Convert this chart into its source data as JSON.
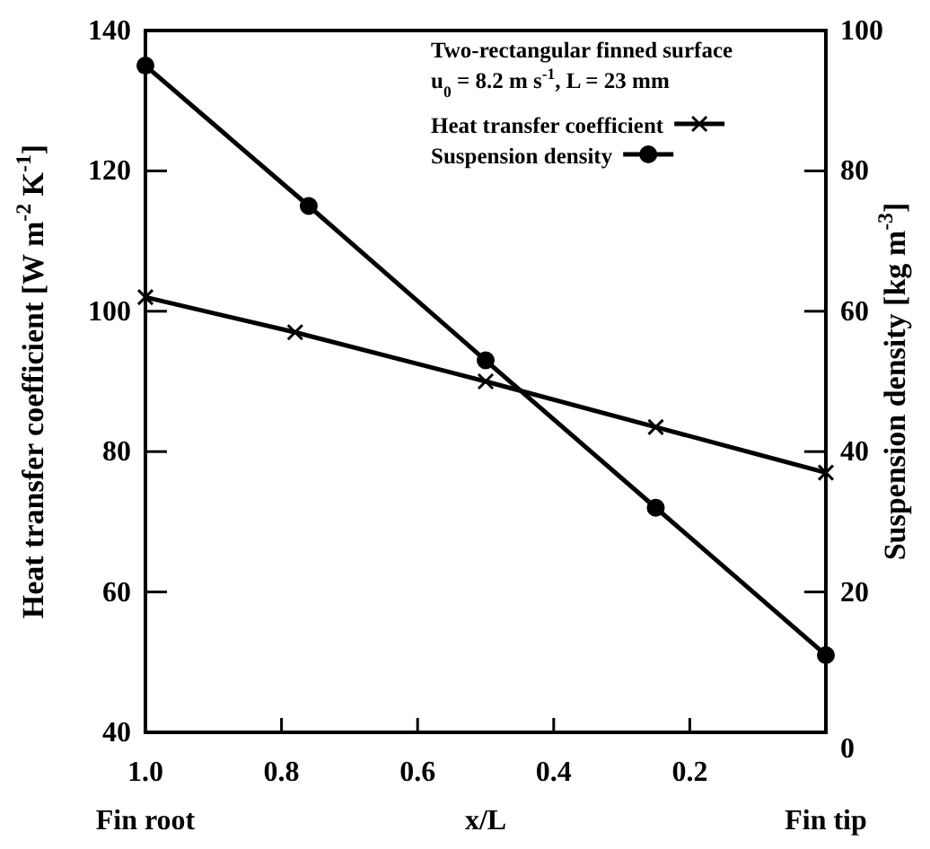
{
  "chart_data": {
    "type": "line",
    "xlabel": "x/L",
    "ylabel": "Heat transfer coefficient [W m$^{-2}$ K$^{-1}$]",
    "y2label": "Suspension density [kg m$^{-3}$]",
    "annotations": [
      "Two-rectangular finned surface",
      "u$_{0}$ = 8.2 m s$^{-1}$, L = 23 mm",
      "Fin root",
      "Fin tip"
    ],
    "series": [
      {
        "name": "Heat transfer coefficient",
        "color": "#000000",
        "marker": "cross",
        "x": [
          1.0,
          0.78,
          0.5,
          0.25,
          0.0
        ],
        "values": [
          102,
          97,
          90,
          83.5,
          77
        ]
      },
      {
        "name": "Suspension density",
        "color": "#000000",
        "marker": "circle",
        "axis": "y2",
        "x": [
          1.0,
          0.76,
          0.5,
          0.25,
          0.0
        ],
        "values": [
          95,
          75,
          53,
          32,
          11
        ]
      }
    ],
    "xlim": [
      1.0,
      0.0
    ],
    "xticks": [
      {
        "value": 1.0,
        "label": "1.0"
      },
      0.8,
      0.6,
      0.4,
      0.2
    ],
    "ylim": [
      40,
      140
    ],
    "yticks": [
      40,
      60,
      80,
      100,
      120,
      140
    ],
    "y2lim": [
      0,
      100
    ],
    "y2ticks": [
      0,
      20,
      40,
      60,
      80,
      100
    ],
    "legend": "top right",
    "grid": false,
    "line_style": "solid"
  }
}
